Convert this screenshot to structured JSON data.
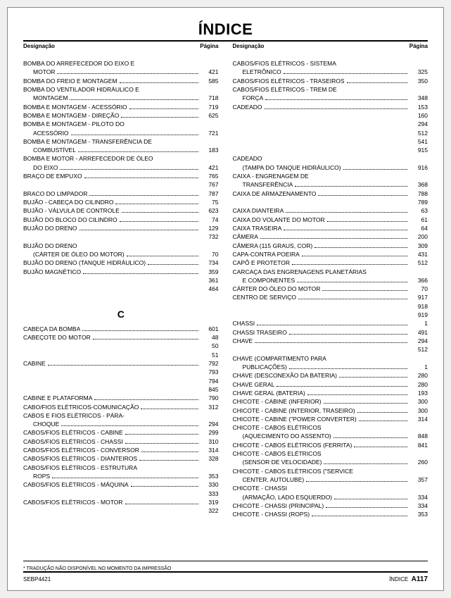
{
  "title": "ÍNDICE",
  "columnHeaders": {
    "left": "Designação",
    "right": "Página"
  },
  "footnote": "* TRADUÇÃO NÃO DISPONÍVEL NO MOMENTO DA IMPRESSÃO",
  "footer": {
    "left": "SEBP4421",
    "rightLabel": "ÍNDICE",
    "rightNum": "A117"
  },
  "sectionLetter": "C",
  "left": [
    {
      "t": "entry",
      "label": "BOMBA DO ARREFECEDOR DO EIXO E",
      "cont": "MOTOR",
      "pages": [
        "421"
      ]
    },
    {
      "t": "entry",
      "label": "BOMBA DO FREIO E MONTAGEM",
      "pages": [
        "585"
      ]
    },
    {
      "t": "entry",
      "label": "BOMBA DO VENTILADOR HIDRÁULICO E",
      "cont": "MONTAGEM",
      "pages": [
        "718"
      ]
    },
    {
      "t": "entry",
      "label": "BOMBA E MONTAGEM - ACESSÓRIO",
      "pages": [
        "719"
      ]
    },
    {
      "t": "entry",
      "label": "BOMBA E MONTAGEM - DIREÇÃO",
      "pages": [
        "625"
      ]
    },
    {
      "t": "entry",
      "label": "BOMBA E MONTAGEM - PILOTO DO",
      "cont": "ACESSÓRIO",
      "pages": [
        "721"
      ]
    },
    {
      "t": "entry",
      "label": "BOMBA E MONTAGEM - TRANSFERÊNCIA DE",
      "cont": "COMBUSTÍVEL",
      "pages": [
        "183"
      ]
    },
    {
      "t": "entry",
      "label": "BOMBA E MOTOR - ARREFECEDOR DE ÓLEO",
      "cont": "DO EIXO",
      "pages": [
        "421"
      ]
    },
    {
      "t": "entry",
      "label": "BRAÇO DE EMPUXO",
      "pages": [
        "765",
        "767"
      ]
    },
    {
      "t": "entry",
      "label": "BRACO DO LIMPADOR",
      "pages": [
        "787"
      ]
    },
    {
      "t": "entry",
      "label": "BUJÃO - CABEÇA DO CILINDRO",
      "pages": [
        "75"
      ]
    },
    {
      "t": "entry",
      "label": "BUJÃO - VÁLVULA DE CONTROLE",
      "pages": [
        "623"
      ]
    },
    {
      "t": "entry",
      "label": "BUJÃO DO BLOCO DO CILINDRO",
      "pages": [
        "74"
      ]
    },
    {
      "t": "entry",
      "label": "BUJÃO DO DRENO",
      "pages": [
        "129",
        "732"
      ]
    },
    {
      "t": "entry",
      "label": "BUJÃO  DO  DRENO",
      "cont": "(CÁRTER DE ÓLEO DO MOTOR)",
      "pages": [
        "70"
      ]
    },
    {
      "t": "entry",
      "label": "BUJÃO DO DRENO (TANQUE HIDRÁULICO)",
      "pages": [
        "734"
      ]
    },
    {
      "t": "entry",
      "label": "BUJÃO MAGNÉTICO",
      "pages": [
        "359",
        "361",
        "464"
      ]
    },
    {
      "t": "spacer"
    },
    {
      "t": "letter"
    },
    {
      "t": "entry",
      "label": "CABEÇA DA BOMBA",
      "pages": [
        "601"
      ]
    },
    {
      "t": "entry",
      "label": "CABEÇOTE DO MOTOR",
      "pages": [
        "48",
        "50",
        "51"
      ]
    },
    {
      "t": "entry",
      "label": "CABINE",
      "pages": [
        "792",
        "793",
        "794",
        "845"
      ]
    },
    {
      "t": "entry",
      "label": "CABINE E PLATAFORMA",
      "pages": [
        "790"
      ]
    },
    {
      "t": "entry",
      "label": "CABO/FIOS ELÉTRICOS-COMUNICAÇÃO",
      "pages": [
        "312"
      ]
    },
    {
      "t": "entry",
      "label": "CABOS E FIOS ELÉTRICOS - PÁRA-",
      "cont": "CHOQUE",
      "pages": [
        "294"
      ]
    },
    {
      "t": "entry",
      "label": "CABOS/FIOS ELÉTRICOS - CABINE",
      "pages": [
        "299"
      ]
    },
    {
      "t": "entry",
      "label": "CABOS/FIOS ELÉTRICOS - CHASSI",
      "pages": [
        "310"
      ]
    },
    {
      "t": "entry",
      "label": "CABOS/FIOS ELÉTRICOS - CONVERSOR",
      "pages": [
        "314"
      ]
    },
    {
      "t": "entry",
      "label": "CABOS/FIOS ELÉTRICOS - DIANTEIROS",
      "pages": [
        "328"
      ]
    },
    {
      "t": "entry",
      "label": "CABOS/FIOS ELÉTRICOS - ESTRUTURA",
      "cont": "ROPS",
      "pages": [
        "353"
      ]
    },
    {
      "t": "entry",
      "label": "CABOS/FIOS ELÉTRICOS - MÁQUINA",
      "pages": [
        "330",
        "333"
      ]
    },
    {
      "t": "entry",
      "label": "CABOS/FIOS ELÉTRICOS - MOTOR",
      "pages": [
        "319",
        "322"
      ]
    }
  ],
  "right": [
    {
      "t": "entry",
      "label": "CABOS/FIOS ELÉTRICOS - SISTEMA",
      "cont": "ELETRÔNICO",
      "pages": [
        "325"
      ]
    },
    {
      "t": "entry",
      "label": "CABOS/FIOS ELÉTRICOS - TRASEIROS",
      "pages": [
        "350"
      ]
    },
    {
      "t": "entry",
      "label": "CABOS/FIOS ELÉTRICOS - TREM DE",
      "cont": "FORÇA",
      "pages": [
        "348"
      ]
    },
    {
      "t": "entry",
      "label": "CADEADO",
      "pages": [
        "153",
        "160",
        "294",
        "512",
        "541",
        "915"
      ]
    },
    {
      "t": "entry",
      "label": "CADEADO",
      "cont": "(TAMPA DO TANQUE HIDRÁULICO)",
      "pages": [
        "916"
      ]
    },
    {
      "t": "entry",
      "label": "CAIXA - ENGRENAGEM DE",
      "cont": "TRANSFERÊNCIA",
      "pages": [
        "368"
      ]
    },
    {
      "t": "entry",
      "label": "CAIXA DE ARMAZENAMENTO",
      "pages": [
        "788",
        "789"
      ]
    },
    {
      "t": "entry",
      "label": "CAIXA DIANTEIRA",
      "pages": [
        "63"
      ]
    },
    {
      "t": "entry",
      "label": "CAIXA DO VOLANTE DO MOTOR",
      "pages": [
        "61"
      ]
    },
    {
      "t": "entry",
      "label": "CAIXA TRASEIRA",
      "pages": [
        "64"
      ]
    },
    {
      "t": "entry",
      "label": "CÂMERA",
      "pages": [
        "200"
      ]
    },
    {
      "t": "entry",
      "label": "CÂMERA (115 GRAUS, COR)",
      "pages": [
        "309"
      ]
    },
    {
      "t": "entry",
      "label": "CAPA-CONTRA POEIRA",
      "pages": [
        "431"
      ]
    },
    {
      "t": "entry",
      "label": "CAPÔ E PROTETOR",
      "pages": [
        "512"
      ]
    },
    {
      "t": "entry",
      "label": "CARCAÇA DAS ENGRENAGENS PLANETÁRIAS",
      "cont": "E COMPONENTES",
      "pages": [
        "366"
      ]
    },
    {
      "t": "entry",
      "label": "CÁRTER DO ÓLEO DO MOTOR",
      "pages": [
        "70"
      ]
    },
    {
      "t": "entry",
      "label": "CENTRO DE SERVIÇO",
      "pages": [
        "917",
        "918",
        "919"
      ]
    },
    {
      "t": "entry",
      "label": "CHASSI",
      "pages": [
        "1"
      ]
    },
    {
      "t": "entry",
      "label": "CHASSI TRASEIRO",
      "pages": [
        "491"
      ]
    },
    {
      "t": "entry",
      "label": "CHAVE",
      "pages": [
        "294",
        "512"
      ]
    },
    {
      "t": "entry",
      "label": "CHAVE (COMPARTIMENTO PARA",
      "cont": "PUBLICAÇÕES)",
      "pages": [
        "1"
      ]
    },
    {
      "t": "entry",
      "label": "CHAVE (DESCONEXÃO DA BATERIA)",
      "pages": [
        "280"
      ]
    },
    {
      "t": "entry",
      "label": "CHAVE GERAL",
      "pages": [
        "280"
      ]
    },
    {
      "t": "entry",
      "label": "CHAVE GERAL (BATERIA)",
      "pages": [
        "193"
      ]
    },
    {
      "t": "entry",
      "label": "CHICOTE - CABINE (INFERIOR)",
      "pages": [
        "300"
      ]
    },
    {
      "t": "entry",
      "label": "CHICOTE - CABINE (INTERIOR, TRASEIRO)",
      "pages": [
        "300"
      ]
    },
    {
      "t": "entry",
      "label": "CHICOTE - CABINE (\"POWER CONVERTER)",
      "pages": [
        "314"
      ]
    },
    {
      "t": "entry",
      "label": "CHICOTE - CABOS ELÉTRICOS",
      "cont": "(AQUECIMENTO DO ASSENTO)",
      "pages": [
        "848"
      ]
    },
    {
      "t": "entry",
      "label": "CHICOTE - CABOS ELÉTRICOS (FERRITA)",
      "pages": [
        "841"
      ]
    },
    {
      "t": "entry",
      "label": "CHICOTE - CABOS ELÉTRICOS",
      "cont": "(SENSOR DE VELOCIDADE)",
      "pages": [
        "260"
      ]
    },
    {
      "t": "entry",
      "label": "CHICOTE - CABOS ELÉTRICOS (\"SERVICE",
      "cont": "CENTER, AUTOLUBE)",
      "pages": [
        "357"
      ]
    },
    {
      "t": "entry",
      "label": "CHICOTE - CHASSI",
      "cont": "(ARMAÇÃO, LADO ESQUERDO)",
      "pages": [
        "334"
      ]
    },
    {
      "t": "entry",
      "label": "CHICOTE - CHASSI (PRINCIPAL)",
      "pages": [
        "334"
      ]
    },
    {
      "t": "entry",
      "label": "CHICOTE - CHASSI (ROPS)",
      "pages": [
        "353"
      ]
    }
  ]
}
